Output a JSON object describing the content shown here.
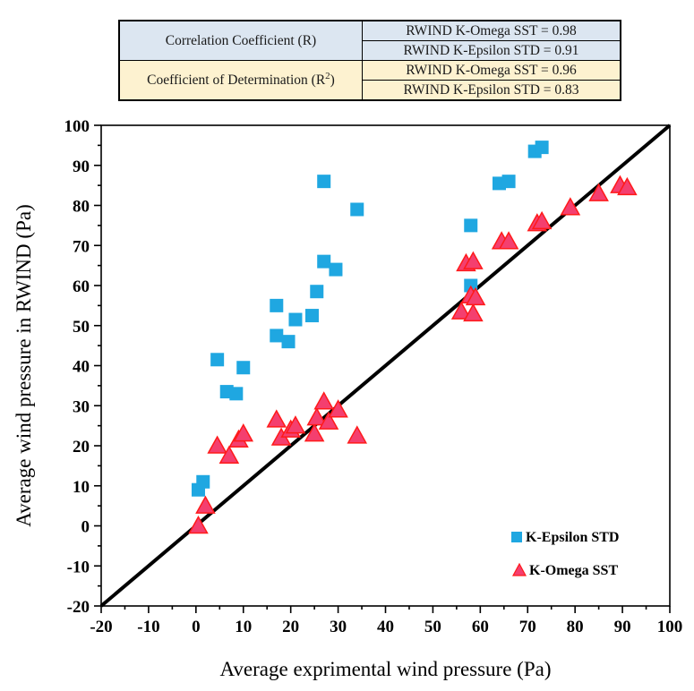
{
  "table": {
    "row_groups": [
      {
        "label_prefix": "Correlation Coefficient (R)",
        "label_sup": "",
        "label_suffix": "",
        "values": [
          "RWIND K-Omega SST  = 0.98",
          "RWIND K-Epsilon STD  = 0.91"
        ]
      },
      {
        "label_prefix": "Coefficient of Determination (R",
        "label_sup": "2",
        "label_suffix": ")",
        "values": [
          "RWIND K-Omega SST  = 0.96",
          "RWIND K-Epsilon STD  = 0.83"
        ]
      }
    ],
    "colors": {
      "blue_fill": "#dce6f1",
      "yellow_fill": "#fdf2d0",
      "border": "#000000"
    }
  },
  "chart_data": {
    "type": "scatter",
    "title": "",
    "xlabel": "Average exprimental wind pressure (Pa)",
    "ylabel": "Average wind pressure in RWIND (Pa)",
    "xlim": [
      -20,
      100
    ],
    "ylim": [
      -20,
      100
    ],
    "major_tick_step": 10,
    "minor_tick_step": 5,
    "grid": false,
    "frame": true,
    "reference_line": {
      "from": [
        -20,
        -20
      ],
      "to": [
        100,
        100
      ],
      "color": "#000000",
      "width": 4
    },
    "series": [
      {
        "name": "K-Epsilon STD",
        "marker": "square",
        "fill": "#1fa7e1",
        "stroke": "none",
        "points": [
          [
            0.5,
            9
          ],
          [
            1.5,
            11
          ],
          [
            4.5,
            41.5
          ],
          [
            6.5,
            33.5
          ],
          [
            8.5,
            33
          ],
          [
            10,
            39.5
          ],
          [
            17,
            47.5
          ],
          [
            17,
            55
          ],
          [
            19.5,
            46
          ],
          [
            21,
            51.5
          ],
          [
            24.5,
            52.5
          ],
          [
            25.5,
            58.5
          ],
          [
            27,
            66
          ],
          [
            27,
            86
          ],
          [
            29.5,
            64
          ],
          [
            34,
            79
          ],
          [
            58,
            60
          ],
          [
            58,
            75
          ],
          [
            64,
            85.5
          ],
          [
            66,
            86
          ],
          [
            71.5,
            93.5
          ],
          [
            73,
            94.5
          ]
        ]
      },
      {
        "name": "K-Omega SST",
        "marker": "triangle",
        "fill": "#f43f6f",
        "stroke": "#ff1a1a",
        "points": [
          [
            0.5,
            0
          ],
          [
            2,
            5
          ],
          [
            4.5,
            20
          ],
          [
            7,
            17.5
          ],
          [
            9,
            21.5
          ],
          [
            10,
            23
          ],
          [
            17,
            26.5
          ],
          [
            18,
            22
          ],
          [
            20,
            24
          ],
          [
            21,
            25
          ],
          [
            25,
            23
          ],
          [
            25.5,
            27
          ],
          [
            27,
            31
          ],
          [
            28,
            26
          ],
          [
            30,
            29
          ],
          [
            34,
            22.5
          ],
          [
            56,
            53.5
          ],
          [
            58.5,
            53
          ],
          [
            58,
            57.5
          ],
          [
            59,
            57
          ],
          [
            57,
            65.5
          ],
          [
            58.5,
            66
          ],
          [
            64.5,
            71
          ],
          [
            66,
            71
          ],
          [
            72,
            75.5
          ],
          [
            73,
            76
          ],
          [
            79,
            79.5
          ],
          [
            85,
            83
          ],
          [
            89.5,
            85
          ],
          [
            91,
            84.5
          ]
        ]
      }
    ],
    "legend": {
      "position": "inside-bottom-right",
      "entries": [
        "K-Epsilon STD",
        "K-Omega SST"
      ]
    },
    "x_tick_labels": [
      "-20",
      "-10",
      "0",
      "10",
      "20",
      "30",
      "40",
      "50",
      "60",
      "70",
      "80",
      "90",
      "100"
    ],
    "y_tick_labels": [
      "-20",
      "-10",
      "0",
      "10",
      "20",
      "30",
      "40",
      "50",
      "60",
      "70",
      "80",
      "90",
      "100"
    ]
  }
}
